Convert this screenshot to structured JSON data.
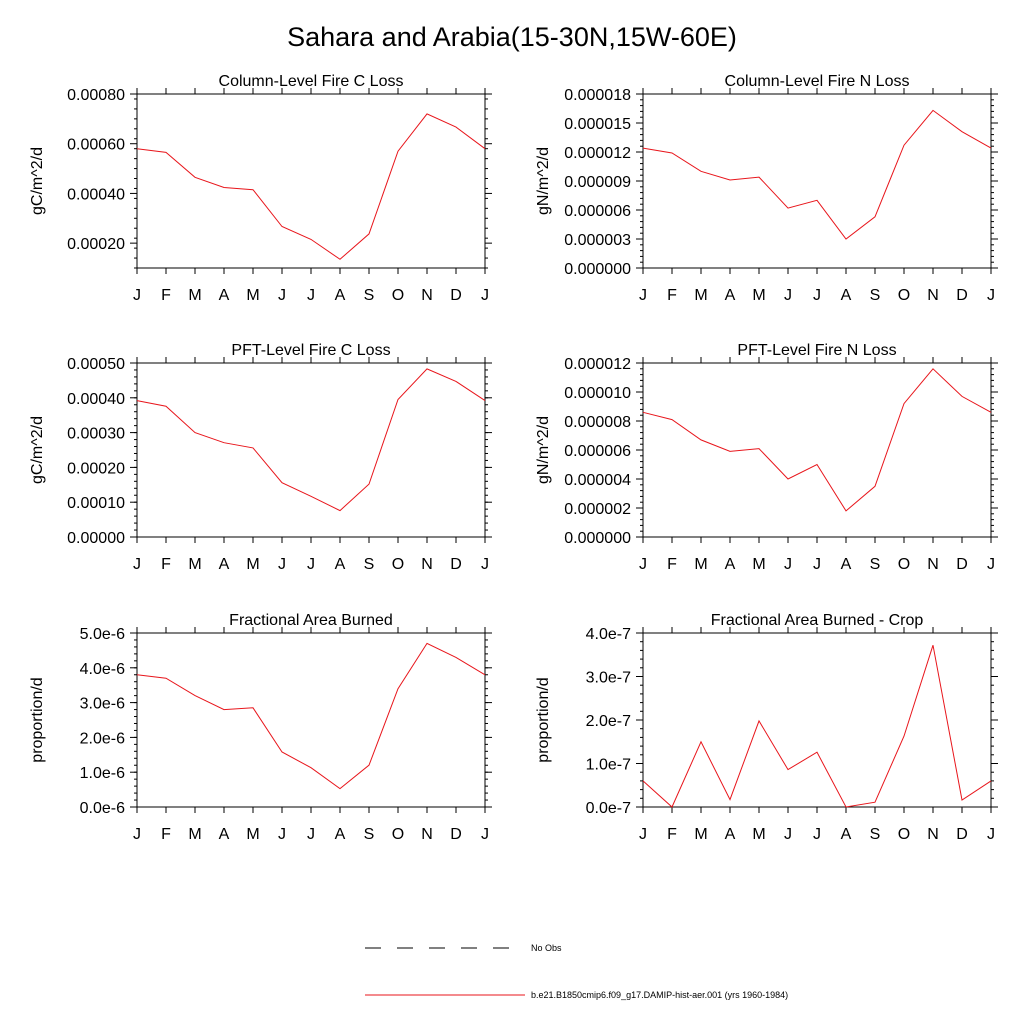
{
  "title": "Sahara and Arabia(15-30N,15W-60E)",
  "legend": {
    "items": [
      {
        "label": "No Obs",
        "color": "#000000",
        "dash": "dashed"
      },
      {
        "label": "b.e21.B1850cmip6.f09_g17.DAMIP-hist-aer.001 (yrs 1960-1984)",
        "color": "#e8151b",
        "dash": "solid"
      }
    ]
  },
  "chart_data": [
    {
      "type": "line",
      "title": "Column-Level Fire C Loss",
      "xlabel": "",
      "ylabel": "gC/m^2/d",
      "categories": [
        "J",
        "F",
        "M",
        "A",
        "M",
        "J",
        "J",
        "A",
        "S",
        "O",
        "N",
        "D",
        "J"
      ],
      "ylim": [
        0.0001,
        0.0008
      ],
      "yticks": [
        0.0002,
        0.0004,
        0.0006,
        0.0008
      ],
      "ytick_labels": [
        "0.00020",
        "0.00040",
        "0.00060",
        "0.00080"
      ],
      "series": [
        {
          "color": "#e8151b",
          "values": [
            0.00058,
            0.000565,
            0.000465,
            0.000424,
            0.000415,
            0.000267,
            0.000215,
            0.000135,
            0.000237,
            0.00057,
            0.00072,
            0.000667,
            0.00058
          ]
        }
      ]
    },
    {
      "type": "line",
      "title": "Column-Level Fire N Loss",
      "xlabel": "",
      "ylabel": "gN/m^2/d",
      "categories": [
        "J",
        "F",
        "M",
        "A",
        "M",
        "J",
        "J",
        "A",
        "S",
        "O",
        "N",
        "D",
        "J"
      ],
      "ylim": [
        0,
        1.8e-05
      ],
      "yticks": [
        0,
        3e-06,
        6e-06,
        9e-06,
        1.2e-05,
        1.5e-05,
        1.8e-05
      ],
      "ytick_labels": [
        "0.000000",
        "0.000003",
        "0.000006",
        "0.000009",
        "0.000012",
        "0.000015",
        "0.000018"
      ],
      "series": [
        {
          "color": "#e8151b",
          "values": [
            1.24e-05,
            1.19e-05,
            1e-05,
            9.1e-06,
            9.4e-06,
            6.2e-06,
            7e-06,
            3e-06,
            5.3e-06,
            1.27e-05,
            1.63e-05,
            1.41e-05,
            1.24e-05
          ]
        }
      ]
    },
    {
      "type": "line",
      "title": "PFT-Level Fire C Loss",
      "xlabel": "",
      "ylabel": "gC/m^2/d",
      "categories": [
        "J",
        "F",
        "M",
        "A",
        "M",
        "J",
        "J",
        "A",
        "S",
        "O",
        "N",
        "D",
        "J"
      ],
      "ylim": [
        0,
        0.0005
      ],
      "yticks": [
        0,
        0.0001,
        0.0002,
        0.0003,
        0.0004,
        0.0005
      ],
      "ytick_labels": [
        "0.00000",
        "0.00010",
        "0.00020",
        "0.00030",
        "0.00040",
        "0.00050"
      ],
      "series": [
        {
          "color": "#e8151b",
          "values": [
            0.000392,
            0.000376,
            0.0003,
            0.000271,
            0.000256,
            0.000156,
            0.000117,
            7.6e-05,
            0.000152,
            0.000395,
            0.000483,
            0.000447,
            0.000392
          ]
        }
      ]
    },
    {
      "type": "line",
      "title": "PFT-Level Fire N Loss",
      "xlabel": "",
      "ylabel": "gN/m^2/d",
      "categories": [
        "J",
        "F",
        "M",
        "A",
        "M",
        "J",
        "J",
        "A",
        "S",
        "O",
        "N",
        "D",
        "J"
      ],
      "ylim": [
        0,
        1.2e-05
      ],
      "yticks": [
        0,
        2e-06,
        4e-06,
        6e-06,
        8e-06,
        1e-05,
        1.2e-05
      ],
      "ytick_labels": [
        "0.000000",
        "0.000002",
        "0.000004",
        "0.000006",
        "0.000008",
        "0.000010",
        "0.000012"
      ],
      "series": [
        {
          "color": "#e8151b",
          "values": [
            8.6e-06,
            8.1e-06,
            6.7e-06,
            5.9e-06,
            6.1e-06,
            4e-06,
            5e-06,
            1.8e-06,
            3.5e-06,
            9.2e-06,
            1.16e-05,
            9.7e-06,
            8.6e-06
          ]
        }
      ]
    },
    {
      "type": "line",
      "title": "Fractional Area Burned",
      "xlabel": "",
      "ylabel": "proportion/d",
      "categories": [
        "J",
        "F",
        "M",
        "A",
        "M",
        "J",
        "J",
        "A",
        "S",
        "O",
        "N",
        "D",
        "J"
      ],
      "ylim": [
        0,
        5e-06
      ],
      "yticks": [
        0,
        1e-06,
        2e-06,
        3e-06,
        4e-06,
        5e-06
      ],
      "ytick_labels": [
        "0.0e-6",
        "1.0e-6",
        "2.0e-6",
        "3.0e-6",
        "4.0e-6",
        "5.0e-6"
      ],
      "series": [
        {
          "color": "#e8151b",
          "values": [
            3.8e-06,
            3.7e-06,
            3.2e-06,
            2.8e-06,
            2.85e-06,
            1.58e-06,
            1.13e-06,
            5.3e-07,
            1.2e-06,
            3.4e-06,
            4.7e-06,
            4.3e-06,
            3.8e-06
          ]
        }
      ]
    },
    {
      "type": "line",
      "title": "Fractional Area Burned - Crop",
      "xlabel": "",
      "ylabel": "proportion/d",
      "categories": [
        "J",
        "F",
        "M",
        "A",
        "M",
        "J",
        "J",
        "A",
        "S",
        "O",
        "N",
        "D",
        "J"
      ],
      "ylim": [
        0,
        4e-07
      ],
      "yticks": [
        0,
        1e-07,
        2e-07,
        3e-07,
        4e-07
      ],
      "ytick_labels": [
        "0.0e-7",
        "1.0e-7",
        "2.0e-7",
        "3.0e-7",
        "4.0e-7"
      ],
      "series": [
        {
          "color": "#e8151b",
          "values": [
            6e-08,
            0,
            1.5e-07,
            1.7e-08,
            1.98e-07,
            8.6e-08,
            1.26e-07,
            0,
            1.1e-08,
            1.63e-07,
            3.72e-07,
            1.6e-08,
            6e-08
          ]
        }
      ]
    }
  ]
}
